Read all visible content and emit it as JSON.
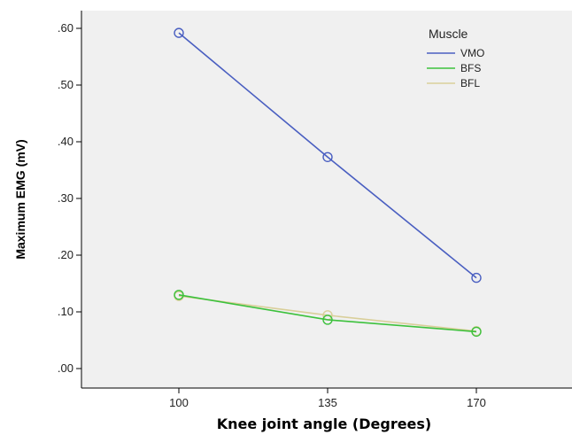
{
  "chart_data": {
    "type": "line",
    "xlabel": "Knee joint angle (Degrees)",
    "ylabel": "Maximum EMG (mV)",
    "categories": [
      "100",
      "135",
      "170"
    ],
    "ylim": [
      0,
      0.6
    ],
    "yticks": [
      ".00",
      ".10",
      ".20",
      ".30",
      ".40",
      ".50",
      ".60"
    ],
    "legend": {
      "title": "Muscle",
      "position": "top-right"
    },
    "grid": false,
    "background": "#f0f0f0",
    "series": [
      {
        "name": "VMO",
        "color": "#4a5fc1",
        "values": [
          0.592,
          0.373,
          0.16
        ]
      },
      {
        "name": "BFS",
        "color": "#3cc13c",
        "values": [
          0.13,
          0.086,
          0.065
        ]
      },
      {
        "name": "BFL",
        "color": "#d9cf9a",
        "values": [
          0.128,
          0.094,
          0.066
        ]
      }
    ]
  }
}
